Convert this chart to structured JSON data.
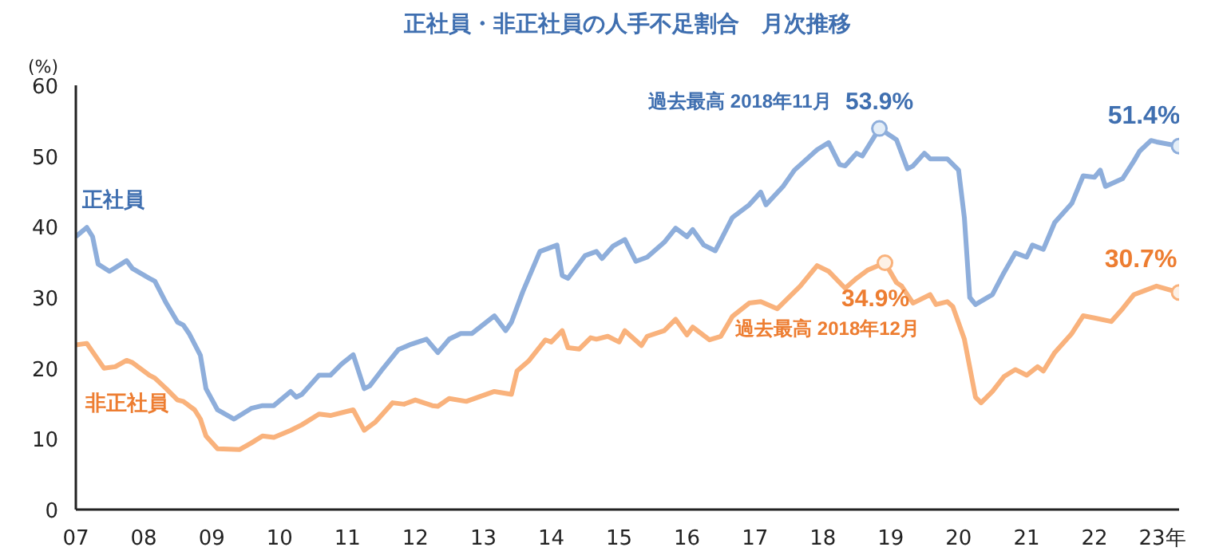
{
  "chart_data": {
    "type": "line",
    "title": "正社員・非正社員の人手不足割合　月次推移",
    "ylabel": "(%)",
    "xlim": [
      "2007-01",
      "2023-04"
    ],
    "xticks": [
      {
        "value": "2007-01",
        "label": "07"
      },
      {
        "value": "2008-01",
        "label": "08"
      },
      {
        "value": "2009-01",
        "label": "09"
      },
      {
        "value": "2010-01",
        "label": "10"
      },
      {
        "value": "2011-01",
        "label": "11"
      },
      {
        "value": "2012-01",
        "label": "12"
      },
      {
        "value": "2013-01",
        "label": "13"
      },
      {
        "value": "2014-01",
        "label": "14"
      },
      {
        "value": "2015-01",
        "label": "15"
      },
      {
        "value": "2016-01",
        "label": "16"
      },
      {
        "value": "2017-01",
        "label": "17"
      },
      {
        "value": "2018-01",
        "label": "18"
      },
      {
        "value": "2019-01",
        "label": "19"
      },
      {
        "value": "2020-01",
        "label": "20"
      },
      {
        "value": "2021-01",
        "label": "21"
      },
      {
        "value": "2022-01",
        "label": "22"
      },
      {
        "value": "2023-01",
        "label": "23年"
      }
    ],
    "ylim": [
      0,
      60
    ],
    "yticks": [
      0,
      10,
      20,
      30,
      40,
      50,
      60
    ],
    "grid": false,
    "legend": false,
    "marker": "none",
    "line_style": "solid",
    "series": [
      {
        "name": "正社員",
        "color": "#8eaedb",
        "x": [
          "2007-01",
          "2007-03",
          "2007-04",
          "2007-05",
          "2007-07",
          "2007-10",
          "2007-11",
          "2008-02",
          "2008-03",
          "2008-05",
          "2008-07",
          "2008-08",
          "2008-09",
          "2008-11",
          "2008-12",
          "2009-02",
          "2009-05",
          "2009-08",
          "2009-10",
          "2009-12",
          "2010-03",
          "2010-04",
          "2010-05",
          "2010-08",
          "2010-10",
          "2010-12",
          "2011-02",
          "2011-04",
          "2011-05",
          "2011-07",
          "2011-10",
          "2011-12",
          "2012-03",
          "2012-05",
          "2012-07",
          "2012-09",
          "2012-11",
          "2013-03",
          "2013-05",
          "2013-06",
          "2013-08",
          "2013-11",
          "2014-02",
          "2014-03",
          "2014-04",
          "2014-07",
          "2014-09",
          "2014-10",
          "2014-12",
          "2015-02",
          "2015-04",
          "2015-06",
          "2015-09",
          "2015-11",
          "2016-01",
          "2016-02",
          "2016-04",
          "2016-06",
          "2016-07",
          "2016-09",
          "2016-12",
          "2017-02",
          "2017-03",
          "2017-06",
          "2017-08",
          "2017-12",
          "2018-02",
          "2018-04",
          "2018-05",
          "2018-07",
          "2018-08",
          "2018-11",
          "2019-02",
          "2019-04",
          "2019-05",
          "2019-07",
          "2019-08",
          "2019-11",
          "2020-01",
          "2020-02",
          "2020-03",
          "2020-04",
          "2020-07",
          "2020-09",
          "2020-11",
          "2021-01",
          "2021-02",
          "2021-04",
          "2021-06",
          "2021-09",
          "2021-11",
          "2022-01",
          "2022-02",
          "2022-03",
          "2022-06",
          "2022-08",
          "2022-09",
          "2022-11",
          "2022-12",
          "2023-04"
        ],
        "values": [
          38.6,
          39.9,
          38.6,
          34.7,
          33.7,
          35.2,
          34.1,
          32.7,
          32.3,
          29.2,
          26.5,
          26.1,
          24.9,
          21.8,
          17.1,
          14.1,
          12.8,
          14.3,
          14.7,
          14.7,
          16.7,
          15.9,
          16.3,
          19.0,
          19.0,
          20.6,
          21.9,
          17.1,
          17.5,
          19.6,
          22.6,
          23.3,
          24.1,
          22.2,
          24.1,
          24.9,
          24.9,
          27.4,
          25.3,
          26.5,
          30.8,
          36.5,
          37.4,
          33.1,
          32.7,
          35.9,
          36.5,
          35.5,
          37.3,
          38.2,
          35.1,
          35.7,
          37.8,
          39.8,
          38.6,
          39.6,
          37.4,
          36.6,
          38.1,
          41.3,
          43.1,
          44.9,
          43.1,
          45.7,
          48.0,
          50.9,
          51.9,
          48.8,
          48.6,
          50.4,
          50.0,
          53.9,
          52.3,
          48.2,
          48.6,
          50.4,
          49.6,
          49.6,
          48.0,
          41.3,
          30.0,
          29.0,
          30.4,
          33.5,
          36.3,
          35.7,
          37.4,
          36.8,
          40.6,
          43.3,
          47.2,
          47.0,
          48.0,
          45.7,
          46.8,
          49.3,
          50.7,
          52.2,
          52.0,
          51.4
        ]
      },
      {
        "name": "非正社員",
        "color": "#f9b27c",
        "x": [
          "2007-01",
          "2007-03",
          "2007-06",
          "2007-08",
          "2007-10",
          "2007-11",
          "2008-02",
          "2008-03",
          "2008-05",
          "2008-07",
          "2008-08",
          "2008-10",
          "2008-11",
          "2008-12",
          "2009-02",
          "2009-06",
          "2009-08",
          "2009-10",
          "2009-12",
          "2010-03",
          "2010-05",
          "2010-08",
          "2010-10",
          "2011-01",
          "2011-02",
          "2011-04",
          "2011-06",
          "2011-09",
          "2011-11",
          "2012-01",
          "2012-04",
          "2012-05",
          "2012-07",
          "2012-10",
          "2013-03",
          "2013-06",
          "2013-07",
          "2013-09",
          "2013-12",
          "2014-01",
          "2014-03",
          "2014-04",
          "2014-06",
          "2014-08",
          "2014-09",
          "2014-11",
          "2015-01",
          "2015-02",
          "2015-05",
          "2015-06",
          "2015-09",
          "2015-11",
          "2016-01",
          "2016-02",
          "2016-05",
          "2016-07",
          "2016-09",
          "2016-12",
          "2017-02",
          "2017-05",
          "2017-09",
          "2017-12",
          "2018-02",
          "2018-05",
          "2018-07",
          "2018-09",
          "2018-12",
          "2019-02",
          "2019-03",
          "2019-05",
          "2019-08",
          "2019-09",
          "2019-11",
          "2019-12",
          "2020-02",
          "2020-04",
          "2020-05",
          "2020-07",
          "2020-09",
          "2020-11",
          "2021-01",
          "2021-03",
          "2021-04",
          "2021-06",
          "2021-09",
          "2021-11",
          "2022-01",
          "2022-04",
          "2022-06",
          "2022-08",
          "2022-10",
          "2022-12",
          "2023-04"
        ],
        "values": [
          23.3,
          23.5,
          20.0,
          20.2,
          21.1,
          20.8,
          19.0,
          18.6,
          17.1,
          15.5,
          15.3,
          14.1,
          12.8,
          10.4,
          8.6,
          8.5,
          9.4,
          10.4,
          10.2,
          11.2,
          12.0,
          13.5,
          13.3,
          13.9,
          14.1,
          11.2,
          12.4,
          15.1,
          14.9,
          15.5,
          14.7,
          14.6,
          15.7,
          15.3,
          16.7,
          16.3,
          19.6,
          21.0,
          24.0,
          23.7,
          25.3,
          22.9,
          22.7,
          24.3,
          24.1,
          24.5,
          23.7,
          25.3,
          23.2,
          24.5,
          25.3,
          26.9,
          24.7,
          25.8,
          24.0,
          24.5,
          27.3,
          29.2,
          29.4,
          28.4,
          31.6,
          34.5,
          33.7,
          31.3,
          32.7,
          33.9,
          34.9,
          32.1,
          31.6,
          29.2,
          30.4,
          29.0,
          29.4,
          28.7,
          24.1,
          15.9,
          15.1,
          16.7,
          18.8,
          19.8,
          19.0,
          20.2,
          19.6,
          22.2,
          24.9,
          27.4,
          27.1,
          26.6,
          28.4,
          30.4,
          31.0,
          31.6,
          30.7
        ]
      }
    ],
    "annotations": [
      {
        "text": "過去最高 2018年11月",
        "x": "2018-11",
        "y": 53.9
      },
      {
        "text": "53.9%",
        "x": "2018-11",
        "y": 53.9
      },
      {
        "text": "34.9%",
        "x": "2018-12",
        "y": 34.9
      },
      {
        "text": "過去最高 2018年12月",
        "x": "2018-12",
        "y": 34.9
      },
      {
        "text": "51.4%",
        "x": "2023-04",
        "y": 51.4
      },
      {
        "text": "30.7%",
        "x": "2023-04",
        "y": 30.7
      }
    ]
  }
}
